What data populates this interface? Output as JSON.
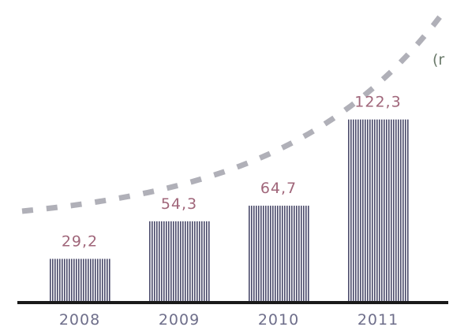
{
  "chart_data": {
    "type": "bar",
    "categories": [
      "2008",
      "2009",
      "2010",
      "2011"
    ],
    "values": [
      29.2,
      54.3,
      64.7,
      122.3
    ],
    "value_labels": [
      "29,2",
      "54,3",
      "64,7",
      "122,3"
    ],
    "trend_line": "dashed exponential curve",
    "unit_label_fragment": "(r",
    "grid": false,
    "legend": "none",
    "title": "",
    "xlabel": "",
    "ylabel": ""
  },
  "colors": {
    "bar_stripe": "#4a4a6a",
    "bar_gap": "#ffffff",
    "axis": "#1a1a1a",
    "trend": "#b0b0b8",
    "value_text": "#a0667a",
    "tick_text": "#6e6e8a",
    "unit_text": "#6a7a6a"
  }
}
